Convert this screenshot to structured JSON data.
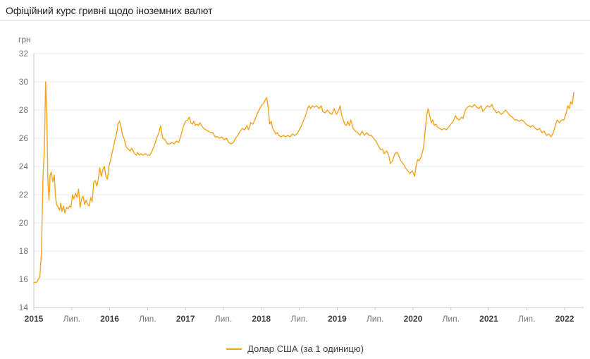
{
  "header": {
    "title": "Офіційний курс гривні щодо іноземних валют"
  },
  "chart_data": {
    "type": "line",
    "title": "Офіційний курс гривні щодо іноземних валют",
    "ylabel": "грн",
    "xlabel": "",
    "ylim": [
      14,
      32
    ],
    "xlim": [
      2015,
      2022.25
    ],
    "y_ticks": [
      32,
      30,
      28,
      26,
      24,
      22,
      20,
      18,
      16,
      14
    ],
    "x_ticks": [
      {
        "x": 2015,
        "label": "2015",
        "type": "year"
      },
      {
        "x": 2015.5,
        "label": "Лип.",
        "type": "month"
      },
      {
        "x": 2016,
        "label": "2016",
        "type": "year"
      },
      {
        "x": 2016.5,
        "label": "Лип.",
        "type": "month"
      },
      {
        "x": 2017,
        "label": "2017",
        "type": "year"
      },
      {
        "x": 2017.5,
        "label": "Лип.",
        "type": "month"
      },
      {
        "x": 2018,
        "label": "2018",
        "type": "year"
      },
      {
        "x": 2018.5,
        "label": "Лип.",
        "type": "month"
      },
      {
        "x": 2019,
        "label": "2019",
        "type": "year"
      },
      {
        "x": 2019.5,
        "label": "Лип.",
        "type": "month"
      },
      {
        "x": 2020,
        "label": "2020",
        "type": "year"
      },
      {
        "x": 2020.5,
        "label": "Лип.",
        "type": "month"
      },
      {
        "x": 2021,
        "label": "2021",
        "type": "year"
      },
      {
        "x": 2021.5,
        "label": "Лип.",
        "type": "month"
      },
      {
        "x": 2022,
        "label": "2022",
        "type": "year"
      }
    ],
    "grid": "horizontal",
    "legend_position": "bottom",
    "colors": {
      "line": "#F5A31B",
      "grid": "#ebebeb",
      "axis": "#c9c9c9"
    },
    "series": [
      {
        "name": "Долар США (за 1 одиницю)",
        "color": "#F5A31B",
        "points": [
          [
            2015.0,
            15.77
          ],
          [
            2015.04,
            15.8
          ],
          [
            2015.08,
            16.2
          ],
          [
            2015.1,
            17.9
          ],
          [
            2015.12,
            23.1
          ],
          [
            2015.14,
            25.5
          ],
          [
            2015.155,
            30.01
          ],
          [
            2015.17,
            27.9
          ],
          [
            2015.185,
            23.1
          ],
          [
            2015.2,
            21.6
          ],
          [
            2015.215,
            23.4
          ],
          [
            2015.23,
            23.6
          ],
          [
            2015.25,
            22.9
          ],
          [
            2015.27,
            23.4
          ],
          [
            2015.285,
            21.9
          ],
          [
            2015.3,
            21.3
          ],
          [
            2015.32,
            21.1
          ],
          [
            2015.34,
            20.9
          ],
          [
            2015.355,
            21.4
          ],
          [
            2015.37,
            20.8
          ],
          [
            2015.39,
            21.2
          ],
          [
            2015.41,
            20.7
          ],
          [
            2015.43,
            21.1
          ],
          [
            2015.45,
            21.0
          ],
          [
            2015.47,
            21.2
          ],
          [
            2015.49,
            21.1
          ],
          [
            2015.51,
            22.0
          ],
          [
            2015.53,
            21.7
          ],
          [
            2015.55,
            22.1
          ],
          [
            2015.57,
            21.8
          ],
          [
            2015.59,
            22.4
          ],
          [
            2015.61,
            21.1
          ],
          [
            2015.63,
            21.7
          ],
          [
            2015.65,
            21.9
          ],
          [
            2015.67,
            21.3
          ],
          [
            2015.69,
            21.6
          ],
          [
            2015.71,
            21.3
          ],
          [
            2015.73,
            21.2
          ],
          [
            2015.75,
            21.8
          ],
          [
            2015.77,
            21.5
          ],
          [
            2015.79,
            22.9
          ],
          [
            2015.81,
            23.0
          ],
          [
            2015.83,
            22.6
          ],
          [
            2015.85,
            23.1
          ],
          [
            2015.87,
            23.9
          ],
          [
            2015.89,
            23.3
          ],
          [
            2015.91,
            23.8
          ],
          [
            2015.93,
            24.0
          ],
          [
            2015.95,
            23.3
          ],
          [
            2015.97,
            23.1
          ],
          [
            2015.99,
            24.0
          ],
          [
            2016.01,
            24.4
          ],
          [
            2016.03,
            24.9
          ],
          [
            2016.05,
            25.4
          ],
          [
            2016.07,
            25.9
          ],
          [
            2016.09,
            26.3
          ],
          [
            2016.11,
            27.0
          ],
          [
            2016.13,
            27.2
          ],
          [
            2016.15,
            26.8
          ],
          [
            2016.17,
            26.2
          ],
          [
            2016.19,
            26.0
          ],
          [
            2016.21,
            25.5
          ],
          [
            2016.23,
            25.3
          ],
          [
            2016.25,
            25.2
          ],
          [
            2016.27,
            25.1
          ],
          [
            2016.29,
            25.3
          ],
          [
            2016.31,
            25.1
          ],
          [
            2016.33,
            24.9
          ],
          [
            2016.35,
            24.8
          ],
          [
            2016.37,
            25.0
          ],
          [
            2016.39,
            24.8
          ],
          [
            2016.41,
            24.9
          ],
          [
            2016.44,
            24.8
          ],
          [
            2016.47,
            24.9
          ],
          [
            2016.5,
            24.8
          ],
          [
            2016.53,
            24.8
          ],
          [
            2016.56,
            25.1
          ],
          [
            2016.59,
            25.5
          ],
          [
            2016.62,
            26.0
          ],
          [
            2016.65,
            26.4
          ],
          [
            2016.67,
            26.9
          ],
          [
            2016.7,
            26.0
          ],
          [
            2016.73,
            25.9
          ],
          [
            2016.76,
            25.6
          ],
          [
            2016.79,
            25.6
          ],
          [
            2016.82,
            25.7
          ],
          [
            2016.85,
            25.6
          ],
          [
            2016.88,
            25.8
          ],
          [
            2016.91,
            25.7
          ],
          [
            2016.94,
            26.2
          ],
          [
            2016.97,
            26.8
          ],
          [
            2017.0,
            27.2
          ],
          [
            2017.03,
            27.3
          ],
          [
            2017.05,
            27.5
          ],
          [
            2017.07,
            27.1
          ],
          [
            2017.09,
            27.0
          ],
          [
            2017.11,
            27.2
          ],
          [
            2017.13,
            26.9
          ],
          [
            2017.15,
            27.0
          ],
          [
            2017.17,
            26.9
          ],
          [
            2017.19,
            27.1
          ],
          [
            2017.21,
            26.9
          ],
          [
            2017.24,
            26.7
          ],
          [
            2017.27,
            26.6
          ],
          [
            2017.3,
            26.5
          ],
          [
            2017.33,
            26.4
          ],
          [
            2017.36,
            26.4
          ],
          [
            2017.39,
            26.1
          ],
          [
            2017.42,
            26.1
          ],
          [
            2017.45,
            26.0
          ],
          [
            2017.48,
            26.1
          ],
          [
            2017.51,
            25.9
          ],
          [
            2017.54,
            26.0
          ],
          [
            2017.57,
            25.7
          ],
          [
            2017.6,
            25.6
          ],
          [
            2017.63,
            25.7
          ],
          [
            2017.66,
            26.0
          ],
          [
            2017.69,
            26.2
          ],
          [
            2017.72,
            26.5
          ],
          [
            2017.75,
            26.7
          ],
          [
            2017.78,
            26.6
          ],
          [
            2017.81,
            26.9
          ],
          [
            2017.83,
            26.6
          ],
          [
            2017.86,
            27.1
          ],
          [
            2017.89,
            27.0
          ],
          [
            2017.92,
            27.4
          ],
          [
            2017.95,
            27.8
          ],
          [
            2017.98,
            28.1
          ],
          [
            2018.0,
            28.3
          ],
          [
            2018.03,
            28.5
          ],
          [
            2018.05,
            28.7
          ],
          [
            2018.07,
            28.88
          ],
          [
            2018.09,
            28.2
          ],
          [
            2018.11,
            27.0
          ],
          [
            2018.13,
            27.2
          ],
          [
            2018.15,
            26.7
          ],
          [
            2018.17,
            26.5
          ],
          [
            2018.19,
            26.3
          ],
          [
            2018.21,
            26.4
          ],
          [
            2018.23,
            26.2
          ],
          [
            2018.26,
            26.1
          ],
          [
            2018.29,
            26.2
          ],
          [
            2018.32,
            26.1
          ],
          [
            2018.35,
            26.2
          ],
          [
            2018.38,
            26.1
          ],
          [
            2018.41,
            26.3
          ],
          [
            2018.44,
            26.2
          ],
          [
            2018.47,
            26.3
          ],
          [
            2018.5,
            26.6
          ],
          [
            2018.53,
            26.9
          ],
          [
            2018.56,
            27.3
          ],
          [
            2018.59,
            27.7
          ],
          [
            2018.61,
            28.1
          ],
          [
            2018.63,
            28.3
          ],
          [
            2018.65,
            28.1
          ],
          [
            2018.67,
            28.3
          ],
          [
            2018.7,
            28.2
          ],
          [
            2018.73,
            28.3
          ],
          [
            2018.76,
            28.1
          ],
          [
            2018.79,
            28.3
          ],
          [
            2018.81,
            27.9
          ],
          [
            2018.84,
            27.8
          ],
          [
            2018.87,
            28.0
          ],
          [
            2018.9,
            27.8
          ],
          [
            2018.93,
            27.7
          ],
          [
            2018.96,
            28.1
          ],
          [
            2018.99,
            27.7
          ],
          [
            2019.02,
            28.0
          ],
          [
            2019.04,
            28.3
          ],
          [
            2019.06,
            27.6
          ],
          [
            2019.08,
            27.3
          ],
          [
            2019.1,
            27.0
          ],
          [
            2019.12,
            26.9
          ],
          [
            2019.14,
            27.2
          ],
          [
            2019.16,
            26.9
          ],
          [
            2019.18,
            27.3
          ],
          [
            2019.21,
            26.7
          ],
          [
            2019.24,
            26.5
          ],
          [
            2019.27,
            26.4
          ],
          [
            2019.3,
            26.2
          ],
          [
            2019.33,
            26.5
          ],
          [
            2019.36,
            26.2
          ],
          [
            2019.39,
            26.4
          ],
          [
            2019.42,
            26.2
          ],
          [
            2019.45,
            26.2
          ],
          [
            2019.48,
            26.0
          ],
          [
            2019.51,
            25.8
          ],
          [
            2019.54,
            25.5
          ],
          [
            2019.57,
            25.2
          ],
          [
            2019.6,
            25.2
          ],
          [
            2019.62,
            24.9
          ],
          [
            2019.65,
            25.1
          ],
          [
            2019.68,
            24.8
          ],
          [
            2019.7,
            24.2
          ],
          [
            2019.73,
            24.4
          ],
          [
            2019.76,
            24.9
          ],
          [
            2019.79,
            25.0
          ],
          [
            2019.81,
            24.8
          ],
          [
            2019.84,
            24.4
          ],
          [
            2019.87,
            24.2
          ],
          [
            2019.9,
            23.9
          ],
          [
            2019.93,
            23.7
          ],
          [
            2019.96,
            23.5
          ],
          [
            2019.99,
            23.7
          ],
          [
            2020.02,
            23.3
          ],
          [
            2020.04,
            24.0
          ],
          [
            2020.06,
            24.5
          ],
          [
            2020.08,
            24.4
          ],
          [
            2020.1,
            24.6
          ],
          [
            2020.12,
            24.9
          ],
          [
            2020.14,
            25.4
          ],
          [
            2020.16,
            26.5
          ],
          [
            2020.18,
            27.6
          ],
          [
            2020.2,
            28.1
          ],
          [
            2020.22,
            27.6
          ],
          [
            2020.24,
            27.1
          ],
          [
            2020.26,
            27.3
          ],
          [
            2020.28,
            26.9
          ],
          [
            2020.3,
            27.0
          ],
          [
            2020.32,
            26.8
          ],
          [
            2020.35,
            26.7
          ],
          [
            2020.38,
            26.6
          ],
          [
            2020.41,
            26.7
          ],
          [
            2020.44,
            26.6
          ],
          [
            2020.47,
            26.8
          ],
          [
            2020.5,
            27.0
          ],
          [
            2020.53,
            27.2
          ],
          [
            2020.56,
            27.6
          ],
          [
            2020.58,
            27.4
          ],
          [
            2020.61,
            27.3
          ],
          [
            2020.64,
            27.5
          ],
          [
            2020.66,
            27.4
          ],
          [
            2020.69,
            28.0
          ],
          [
            2020.72,
            28.2
          ],
          [
            2020.75,
            28.3
          ],
          [
            2020.78,
            28.2
          ],
          [
            2020.81,
            28.4
          ],
          [
            2020.84,
            28.2
          ],
          [
            2020.87,
            28.1
          ],
          [
            2020.9,
            28.3
          ],
          [
            2020.92,
            27.9
          ],
          [
            2020.95,
            28.1
          ],
          [
            2020.98,
            28.3
          ],
          [
            2021.01,
            28.2
          ],
          [
            2021.04,
            28.4
          ],
          [
            2021.06,
            28.1
          ],
          [
            2021.08,
            28.0
          ],
          [
            2021.1,
            27.8
          ],
          [
            2021.13,
            27.9
          ],
          [
            2021.16,
            27.7
          ],
          [
            2021.19,
            27.8
          ],
          [
            2021.22,
            28.0
          ],
          [
            2021.25,
            27.8
          ],
          [
            2021.28,
            27.6
          ],
          [
            2021.31,
            27.5
          ],
          [
            2021.34,
            27.3
          ],
          [
            2021.37,
            27.3
          ],
          [
            2021.4,
            27.2
          ],
          [
            2021.43,
            27.3
          ],
          [
            2021.46,
            27.2
          ],
          [
            2021.49,
            27.0
          ],
          [
            2021.52,
            26.9
          ],
          [
            2021.55,
            26.8
          ],
          [
            2021.58,
            26.9
          ],
          [
            2021.61,
            26.7
          ],
          [
            2021.64,
            26.6
          ],
          [
            2021.67,
            26.7
          ],
          [
            2021.7,
            26.4
          ],
          [
            2021.73,
            26.5
          ],
          [
            2021.76,
            26.2
          ],
          [
            2021.79,
            26.3
          ],
          [
            2021.82,
            26.1
          ],
          [
            2021.85,
            26.4
          ],
          [
            2021.88,
            27.0
          ],
          [
            2021.9,
            27.3
          ],
          [
            2021.93,
            27.1
          ],
          [
            2021.96,
            27.3
          ],
          [
            2021.99,
            27.3
          ],
          [
            2022.02,
            27.8
          ],
          [
            2022.04,
            28.3
          ],
          [
            2022.06,
            28.1
          ],
          [
            2022.08,
            28.6
          ],
          [
            2022.1,
            28.4
          ],
          [
            2022.12,
            29.25
          ]
        ]
      }
    ]
  },
  "legend": {
    "usd_label": "Долар США (за 1 одиницю)"
  }
}
